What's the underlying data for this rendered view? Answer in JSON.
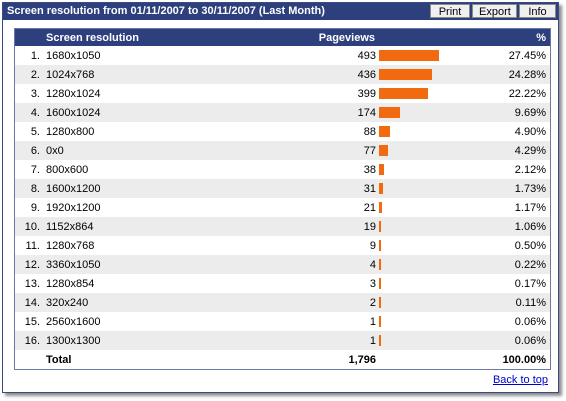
{
  "title": "Screen resolution from 01/11/2007 to 30/11/2007 (Last Month)",
  "buttons": {
    "print": "Print",
    "export": "Export",
    "info": "Info"
  },
  "headers": {
    "resolution": "Screen resolution",
    "pageviews": "Pageviews",
    "percent": "%"
  },
  "colors": {
    "bar": "#f26a0f",
    "header_bg": "#2e3f7e",
    "alt_row": "#ececec"
  },
  "rows": [
    {
      "idx": "1.",
      "res": "1680x1050",
      "pv": "493",
      "pct": "27.45%",
      "share": 27.45
    },
    {
      "idx": "2.",
      "res": "1024x768",
      "pv": "436",
      "pct": "24.28%",
      "share": 24.28
    },
    {
      "idx": "3.",
      "res": "1280x1024",
      "pv": "399",
      "pct": "22.22%",
      "share": 22.22
    },
    {
      "idx": "4.",
      "res": "1600x1024",
      "pv": "174",
      "pct": "9.69%",
      "share": 9.69
    },
    {
      "idx": "5.",
      "res": "1280x800",
      "pv": "88",
      "pct": "4.90%",
      "share": 4.9
    },
    {
      "idx": "6.",
      "res": "0x0",
      "pv": "77",
      "pct": "4.29%",
      "share": 4.29
    },
    {
      "idx": "7.",
      "res": "800x600",
      "pv": "38",
      "pct": "2.12%",
      "share": 2.12
    },
    {
      "idx": "8.",
      "res": "1600x1200",
      "pv": "31",
      "pct": "1.73%",
      "share": 1.73
    },
    {
      "idx": "9.",
      "res": "1920x1200",
      "pv": "21",
      "pct": "1.17%",
      "share": 1.17
    },
    {
      "idx": "10.",
      "res": "1152x864",
      "pv": "19",
      "pct": "1.06%",
      "share": 1.06
    },
    {
      "idx": "11.",
      "res": "1280x768",
      "pv": "9",
      "pct": "0.50%",
      "share": 0.5
    },
    {
      "idx": "12.",
      "res": "3360x1050",
      "pv": "4",
      "pct": "0.22%",
      "share": 0.22
    },
    {
      "idx": "13.",
      "res": "1280x854",
      "pv": "3",
      "pct": "0.17%",
      "share": 0.17
    },
    {
      "idx": "14.",
      "res": "320x240",
      "pv": "2",
      "pct": "0.11%",
      "share": 0.11
    },
    {
      "idx": "15.",
      "res": "2560x1600",
      "pv": "1",
      "pct": "0.06%",
      "share": 0.06
    },
    {
      "idx": "16.",
      "res": "1300x1300",
      "pv": "1",
      "pct": "0.06%",
      "share": 0.06
    }
  ],
  "total": {
    "label": "Total",
    "pv": "1,796",
    "pct": "100.00%"
  },
  "back_to_top": "Back to top"
}
